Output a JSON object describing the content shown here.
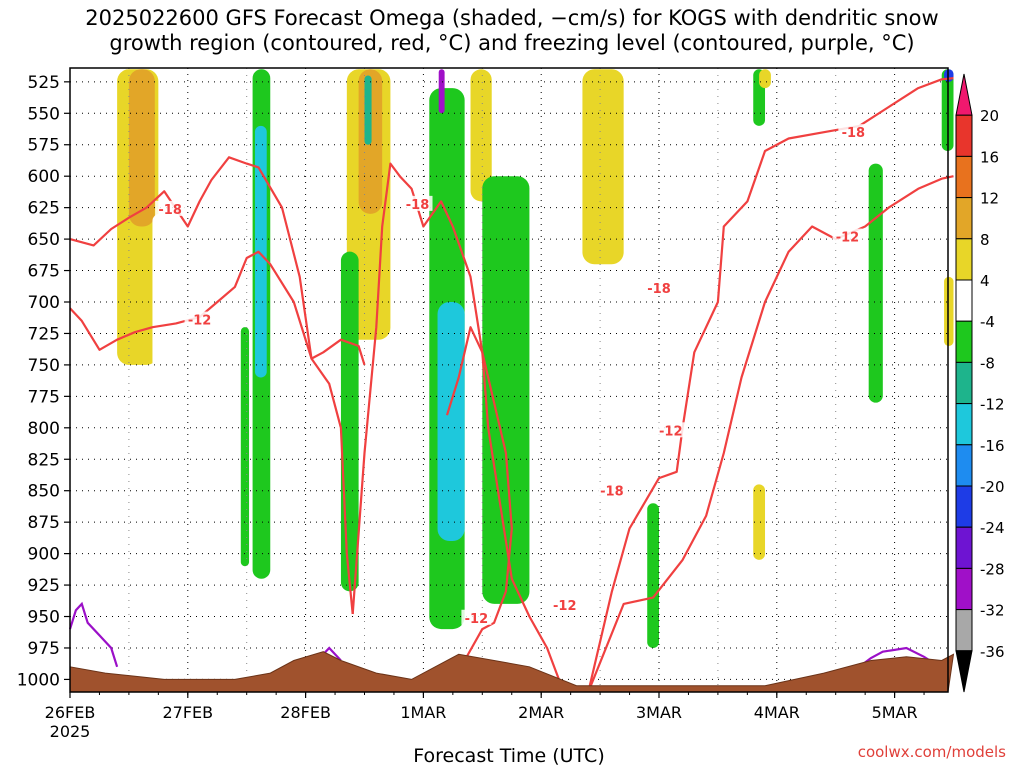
{
  "title_lines": [
    "2025022600 GFS Forecast Omega (shaded, −cm/s) for KOGS with dendritic snow",
    "growth region (contoured, red, °C) and freezing level (contoured, purple, °C)"
  ],
  "credit": "coolwx.com/models",
  "chart_data": {
    "type": "heatmap",
    "title": "2025022600 GFS Forecast Omega (shaded, −cm/s) for KOGS with dendritic snow growth region (contoured, red, °C) and freezing level (contoured, purple, °C)",
    "xlabel": "Forecast Time (UTC)",
    "ylabel": "",
    "x_start_label": "26FEB",
    "x_start_year": "2025",
    "x_ticks": [
      "26FEB",
      "27FEB",
      "28FEB",
      "1MAR",
      "2MAR",
      "3MAR",
      "4MAR",
      "5MAR"
    ],
    "y_ticks": [
      525,
      550,
      575,
      600,
      625,
      650,
      675,
      700,
      725,
      750,
      775,
      800,
      825,
      850,
      875,
      900,
      925,
      950,
      975,
      1000
    ],
    "y_axis": "pressure (hPa), inverted",
    "grid": true,
    "colorbar": {
      "levels": [
        20,
        16,
        12,
        8,
        4,
        -4,
        -8,
        -12,
        -16,
        -20,
        -24,
        -28,
        -32,
        -36
      ],
      "colors": [
        "#f0186e",
        "#e8352c",
        "#e8721e",
        "#e2a628",
        "#e8d628",
        "#ffffff",
        "#1ec81e",
        "#1eb48c",
        "#1ec8dc",
        "#1e8cf0",
        "#1e3ce6",
        "#6e14d2",
        "#a010c8",
        "#a8a8a8",
        "#000000"
      ]
    },
    "contour_labels": [
      {
        "value": "-18",
        "day": 0.85,
        "p": 626
      },
      {
        "value": "-12",
        "day": 1.1,
        "p": 714
      },
      {
        "value": "-18",
        "day": 2.95,
        "p": 622
      },
      {
        "value": "-12",
        "day": 3.45,
        "p": 951
      },
      {
        "value": "-18",
        "day": 4.6,
        "p": 850
      },
      {
        "value": "-12",
        "day": 4.2,
        "p": 941
      },
      {
        "value": "-18",
        "day": 5.0,
        "p": 689
      },
      {
        "value": "-12",
        "day": 5.1,
        "p": 802
      },
      {
        "value": "-18",
        "day": 6.65,
        "p": 565
      },
      {
        "value": "-12",
        "day": 6.6,
        "p": 648
      }
    ],
    "omega_regions": [
      {
        "value": 6,
        "d0": 0.4,
        "d1": 0.75,
        "p0": 515,
        "p1": 750
      },
      {
        "value": 9,
        "d0": 0.5,
        "d1": 0.72,
        "p0": 515,
        "p1": 640
      },
      {
        "value": 4,
        "d0": 0.7,
        "d1": 0.82,
        "p0": 630,
        "p1": 860
      },
      {
        "value": -6,
        "d0": 1.55,
        "d1": 1.7,
        "p0": 515,
        "p1": 920
      },
      {
        "value": -14,
        "d0": 1.57,
        "d1": 1.67,
        "p0": 560,
        "p1": 760
      },
      {
        "value": -6,
        "d0": 1.45,
        "d1": 1.52,
        "p0": 720,
        "p1": 910
      },
      {
        "value": 6,
        "d0": 2.35,
        "d1": 2.72,
        "p0": 515,
        "p1": 730
      },
      {
        "value": 9,
        "d0": 2.45,
        "d1": 2.65,
        "p0": 515,
        "p1": 630
      },
      {
        "value": -6,
        "d0": 2.3,
        "d1": 2.45,
        "p0": 660,
        "p1": 930
      },
      {
        "value": -10,
        "d0": 2.5,
        "d1": 2.56,
        "p0": 520,
        "p1": 575
      },
      {
        "value": -6,
        "d0": 3.05,
        "d1": 3.35,
        "p0": 530,
        "p1": 960
      },
      {
        "value": -14,
        "d0": 3.12,
        "d1": 3.35,
        "p0": 700,
        "p1": 890
      },
      {
        "value": -30,
        "d0": 3.13,
        "d1": 3.18,
        "p0": 515,
        "p1": 550
      },
      {
        "value": 6,
        "d0": 3.4,
        "d1": 3.58,
        "p0": 515,
        "p1": 620
      },
      {
        "value": -6,
        "d0": 3.5,
        "d1": 3.9,
        "p0": 600,
        "p1": 940
      },
      {
        "value": 6,
        "d0": 4.35,
        "d1": 4.7,
        "p0": 515,
        "p1": 670
      },
      {
        "value": -6,
        "d0": 4.9,
        "d1": 5.0,
        "p0": 860,
        "p1": 975
      },
      {
        "value": -6,
        "d0": 5.8,
        "d1": 5.9,
        "p0": 515,
        "p1": 560
      },
      {
        "value": 6,
        "d0": 5.85,
        "d1": 5.95,
        "p0": 515,
        "p1": 530
      },
      {
        "value": 6,
        "d0": 5.8,
        "d1": 5.9,
        "p0": 845,
        "p1": 905
      },
      {
        "value": -6,
        "d0": 6.78,
        "d1": 6.9,
        "p0": 590,
        "p1": 780
      },
      {
        "value": -6,
        "d0": 7.4,
        "d1": 7.5,
        "p0": 515,
        "p1": 580
      },
      {
        "value": -20,
        "d0": 7.42,
        "d1": 7.5,
        "p0": 515,
        "p1": 525
      },
      {
        "value": 6,
        "d0": 7.42,
        "d1": 7.5,
        "p0": 680,
        "p1": 735
      }
    ],
    "dgz_contours": {
      "color": "#f04040",
      "lines": [
        {
          "value": -18,
          "points": [
            [
              0.0,
              650
            ],
            [
              0.2,
              655
            ],
            [
              0.35,
              642
            ],
            [
              0.5,
              633
            ],
            [
              0.65,
              625
            ],
            [
              0.8,
              612
            ],
            [
              1.0,
              640
            ],
            [
              1.1,
              620
            ],
            [
              1.2,
              603
            ],
            [
              1.35,
              585
            ],
            [
              1.5,
              590
            ],
            [
              1.6,
              593
            ],
            [
              1.8,
              625
            ],
            [
              1.95,
              680
            ],
            [
              2.05,
              745
            ],
            [
              2.2,
              765
            ],
            [
              2.3,
              800
            ],
            [
              2.35,
              900
            ],
            [
              2.4,
              948
            ]
          ]
        },
        {
          "value": -12,
          "points": [
            [
              0.0,
              705
            ],
            [
              0.1,
              715
            ],
            [
              0.25,
              738
            ],
            [
              0.4,
              730
            ],
            [
              0.55,
              724
            ],
            [
              0.7,
              720
            ],
            [
              0.9,
              717
            ],
            [
              1.1,
              712
            ],
            [
              1.25,
              700
            ],
            [
              1.4,
              688
            ],
            [
              1.5,
              665
            ],
            [
              1.6,
              660
            ],
            [
              1.7,
              670
            ],
            [
              1.9,
              700
            ],
            [
              2.05,
              745
            ],
            [
              2.15,
              740
            ],
            [
              2.3,
              730
            ],
            [
              2.45,
              735
            ],
            [
              2.5,
              750
            ]
          ]
        },
        {
          "value": -18,
          "points": [
            [
              2.4,
              948
            ],
            [
              2.5,
              820
            ],
            [
              2.6,
              720
            ],
            [
              2.65,
              640
            ],
            [
              2.72,
              590
            ],
            [
              2.8,
              600
            ],
            [
              2.9,
              610
            ],
            [
              3.0,
              640
            ],
            [
              3.15,
              620
            ],
            [
              3.25,
              640
            ],
            [
              3.4,
              680
            ],
            [
              3.5,
              740
            ],
            [
              3.6,
              780
            ],
            [
              3.7,
              820
            ],
            [
              3.75,
              880
            ],
            [
              3.7,
              930
            ],
            [
              3.6,
              955
            ],
            [
              3.5,
              960
            ],
            [
              3.35,
              985
            ]
          ]
        },
        {
          "value": -12,
          "points": [
            [
              3.2,
              790
            ],
            [
              3.3,
              760
            ],
            [
              3.4,
              720
            ],
            [
              3.5,
              740
            ],
            [
              3.55,
              800
            ],
            [
              3.65,
              860
            ],
            [
              3.75,
              920
            ],
            [
              3.9,
              950
            ],
            [
              4.05,
              975
            ],
            [
              4.15,
              1000
            ]
          ]
        },
        {
          "value": -18,
          "points": [
            [
              4.4,
              1010
            ],
            [
              4.6,
              930
            ],
            [
              4.75,
              880
            ],
            [
              5.0,
              840
            ],
            [
              5.15,
              835
            ],
            [
              5.2,
              800
            ],
            [
              5.3,
              740
            ],
            [
              5.5,
              700
            ],
            [
              5.55,
              640
            ],
            [
              5.75,
              620
            ],
            [
              5.9,
              580
            ],
            [
              6.1,
              570
            ],
            [
              6.4,
              565
            ],
            [
              6.7,
              560
            ],
            [
              6.95,
              545
            ],
            [
              7.2,
              530
            ],
            [
              7.4,
              523
            ],
            [
              7.5,
              522
            ]
          ]
        },
        {
          "value": -12,
          "points": [
            [
              4.4,
              1010
            ],
            [
              4.7,
              940
            ],
            [
              4.95,
              935
            ],
            [
              5.2,
              905
            ],
            [
              5.4,
              870
            ],
            [
              5.55,
              820
            ],
            [
              5.7,
              760
            ],
            [
              5.9,
              700
            ],
            [
              6.1,
              660
            ],
            [
              6.3,
              640
            ],
            [
              6.5,
              650
            ],
            [
              6.75,
              640
            ],
            [
              6.95,
              625
            ],
            [
              7.2,
              610
            ],
            [
              7.4,
              602
            ],
            [
              7.5,
              600
            ]
          ]
        }
      ]
    },
    "freezing_level": {
      "color": "#9b10c8",
      "segments": [
        {
          "points": [
            [
              0.0,
              960
            ],
            [
              0.05,
              945
            ],
            [
              0.1,
              940
            ],
            [
              0.15,
              955
            ],
            [
              0.25,
              965
            ],
            [
              0.35,
              975
            ],
            [
              0.4,
              990
            ]
          ]
        },
        {
          "points": [
            [
              2.1,
              985
            ],
            [
              2.2,
              975
            ],
            [
              2.3,
              985
            ]
          ]
        },
        {
          "points": [
            [
              6.7,
              990
            ],
            [
              6.8,
              983
            ],
            [
              6.9,
              978
            ],
            [
              7.1,
              975
            ],
            [
              7.25,
              982
            ],
            [
              7.35,
              988
            ]
          ]
        }
      ]
    },
    "terrain": {
      "color": "#a0522d",
      "points": [
        [
          0.0,
          990
        ],
        [
          0.3,
          995
        ],
        [
          0.8,
          1000
        ],
        [
          1.4,
          1000
        ],
        [
          1.7,
          995
        ],
        [
          1.9,
          985
        ],
        [
          2.15,
          978
        ],
        [
          2.3,
          985
        ],
        [
          2.6,
          995
        ],
        [
          2.9,
          1000
        ],
        [
          3.1,
          990
        ],
        [
          3.3,
          980
        ],
        [
          3.6,
          985
        ],
        [
          3.9,
          990
        ],
        [
          4.3,
          1005
        ],
        [
          4.8,
          1005
        ],
        [
          5.3,
          1005
        ],
        [
          5.9,
          1005
        ],
        [
          6.4,
          995
        ],
        [
          6.8,
          985
        ],
        [
          7.1,
          982
        ],
        [
          7.4,
          985
        ],
        [
          7.5,
          980
        ]
      ]
    }
  }
}
